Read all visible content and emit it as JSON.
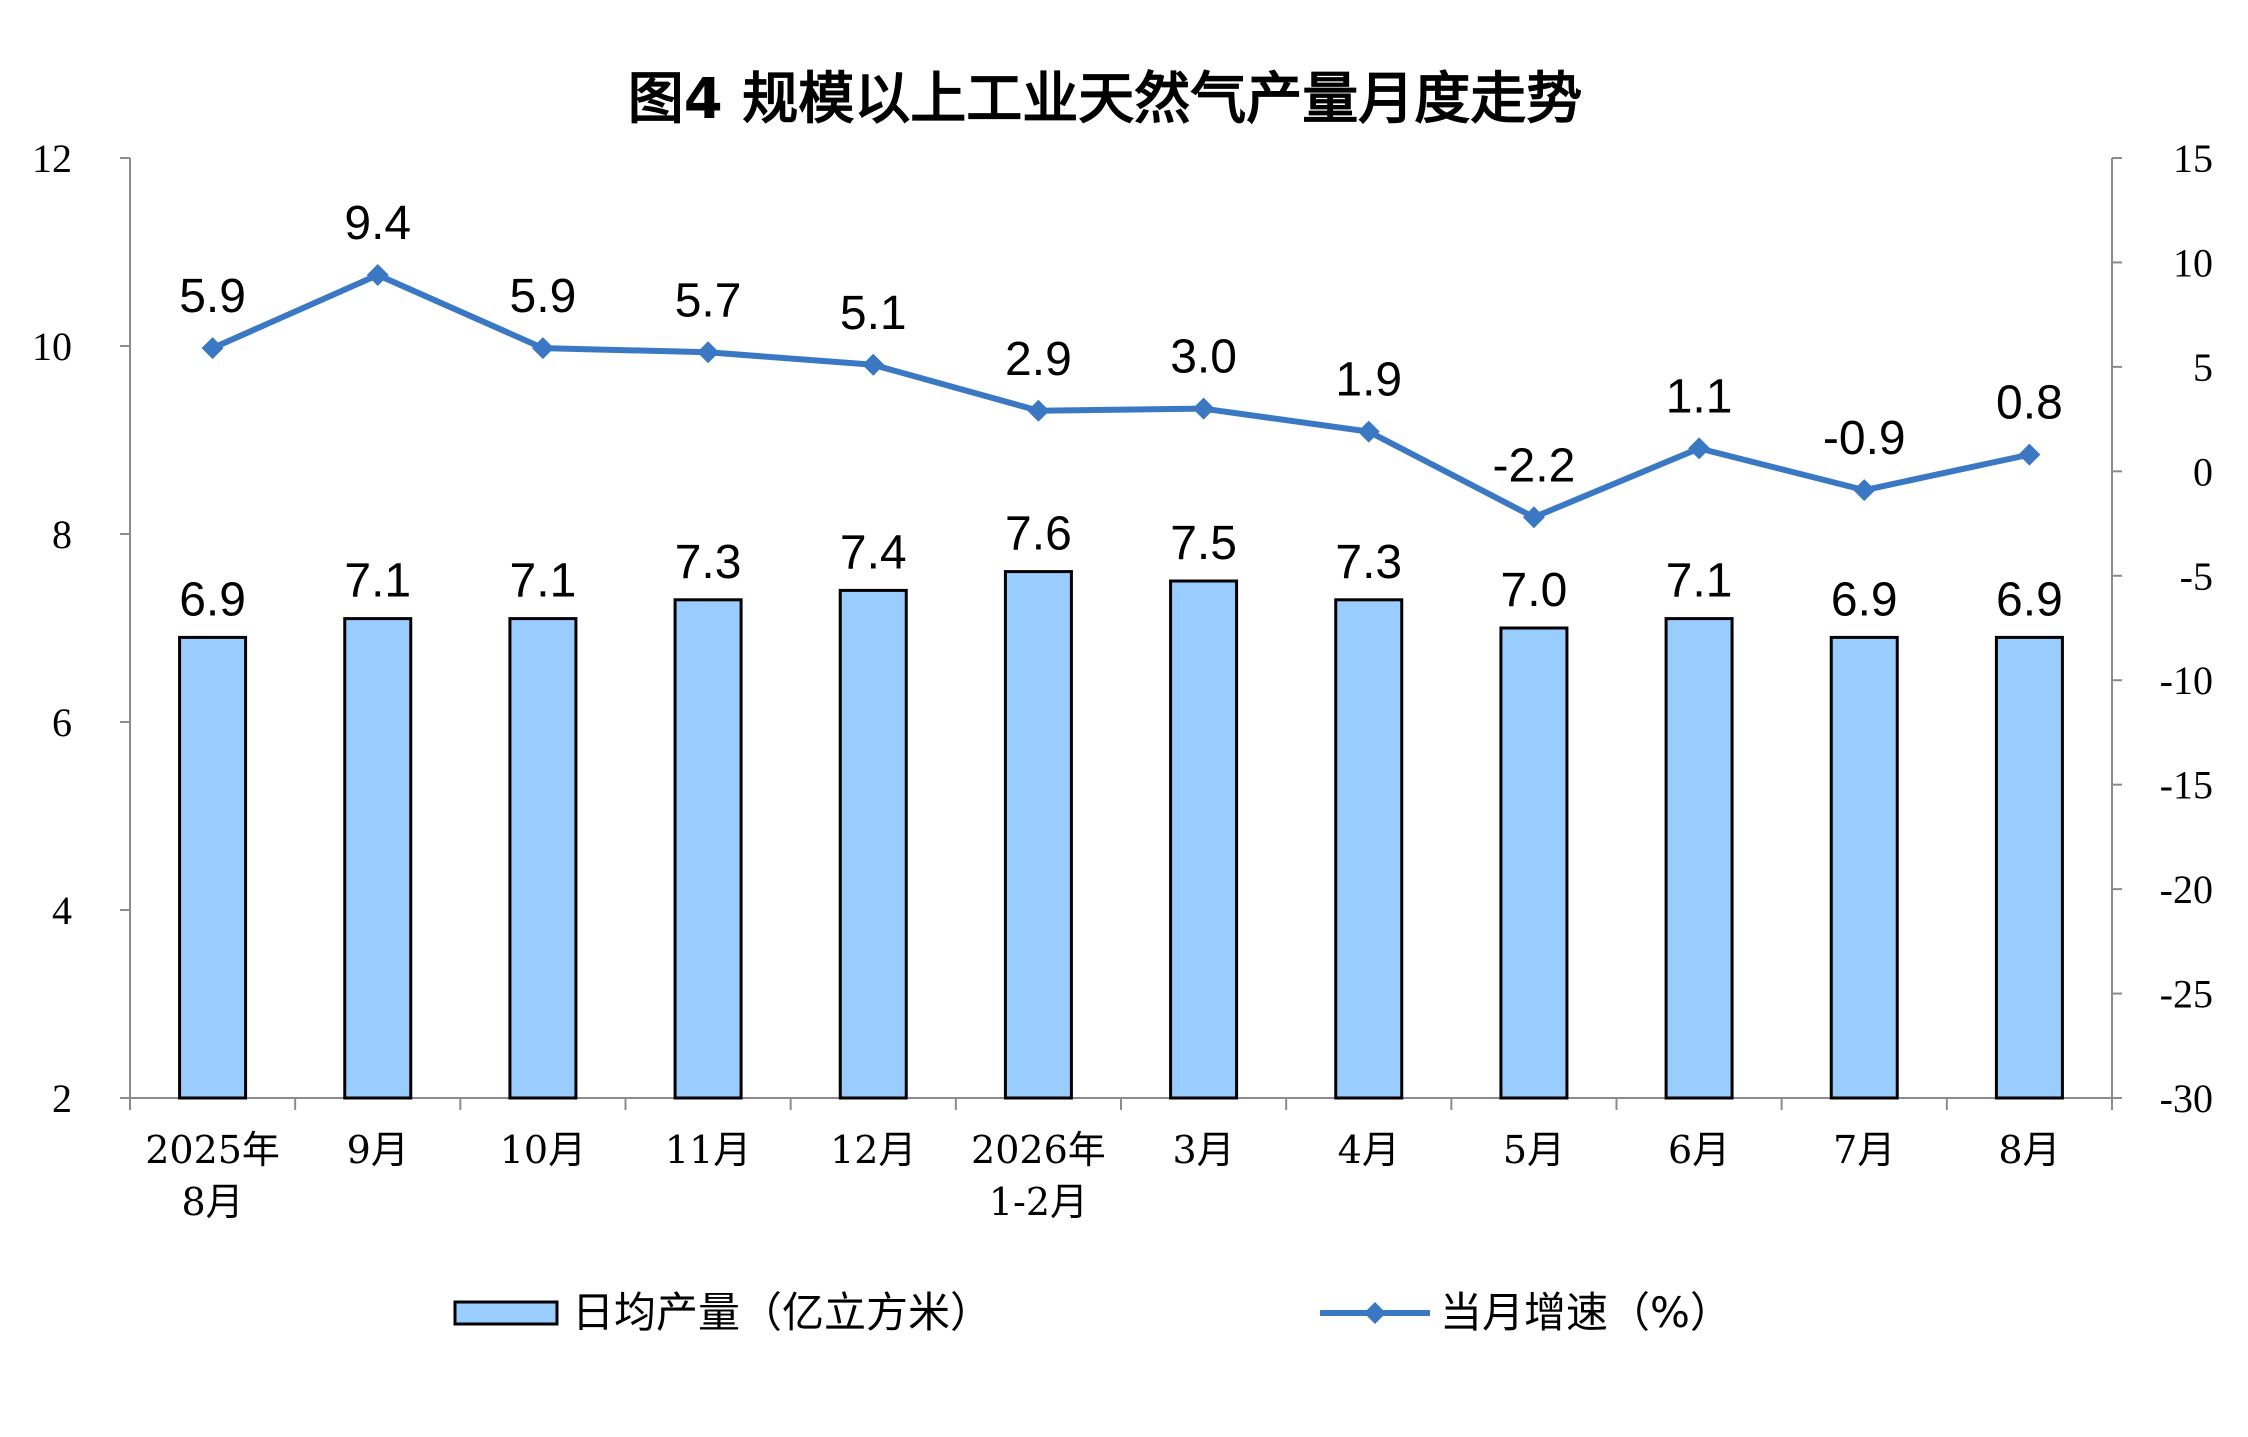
{
  "chart_data": {
    "type": "bar+line",
    "title": "图4 规模以上工业天然气产量月度走势",
    "categories": [
      [
        "2025年",
        "8月"
      ],
      [
        "9月"
      ],
      [
        "10月"
      ],
      [
        "11月"
      ],
      [
        "12月"
      ],
      [
        "2026年",
        "1-2月"
      ],
      [
        "3月"
      ],
      [
        "4月"
      ],
      [
        "5月"
      ],
      [
        "6月"
      ],
      [
        "7月"
      ],
      [
        "8月"
      ]
    ],
    "series": [
      {
        "name": "日均产量（亿立方米）",
        "type": "bar",
        "axis": "left",
        "values": [
          6.9,
          7.1,
          7.1,
          7.3,
          7.4,
          7.6,
          7.5,
          7.3,
          7.0,
          7.1,
          6.9,
          6.9
        ],
        "labels": [
          "6.9",
          "7.1",
          "7.1",
          "7.3",
          "7.4",
          "7.6",
          "7.5",
          "7.3",
          "7.0",
          "7.1",
          "6.9",
          "6.9"
        ],
        "color": "#99CCFF"
      },
      {
        "name": "当月增速（%）",
        "type": "line",
        "axis": "right",
        "values": [
          5.9,
          9.4,
          5.9,
          5.7,
          5.1,
          2.9,
          3.0,
          1.9,
          -2.2,
          1.1,
          -0.9,
          0.8
        ],
        "labels": [
          "5.9",
          "9.4",
          "5.9",
          "5.7",
          "5.1",
          "2.9",
          "3.0",
          "1.9",
          "-2.2",
          "1.1",
          "-0.9",
          "0.8"
        ],
        "color": "#3A78C4"
      }
    ],
    "y_left": {
      "min": 2,
      "max": 12,
      "ticks": [
        "2",
        "4",
        "6",
        "8",
        "10",
        "12"
      ]
    },
    "y_right": {
      "min": -30,
      "max": 15,
      "ticks": [
        "-30",
        "-25",
        "-20",
        "-15",
        "-10",
        "-5",
        "0",
        "5",
        "10",
        "15"
      ]
    },
    "grid": false,
    "legend_position": "bottom"
  }
}
